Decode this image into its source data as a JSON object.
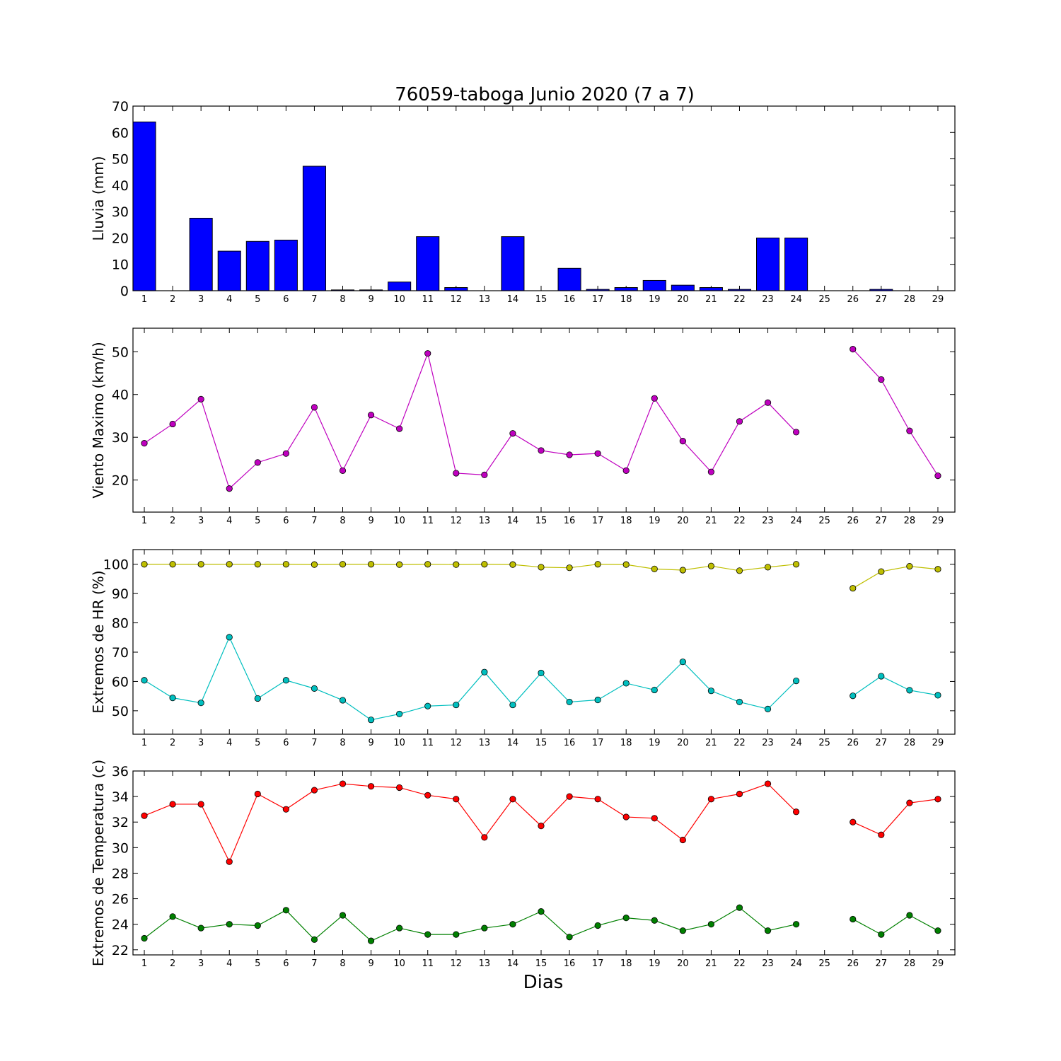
{
  "figure": {
    "title": "76059-taboga Junio 2020  (7 a 7)",
    "xlabel": "Dias"
  },
  "chart_data": [
    {
      "type": "bar",
      "ylabel": "Lluvia (mm)",
      "ylim": [
        0,
        70
      ],
      "yticks": [
        0,
        10,
        20,
        30,
        40,
        50,
        60,
        70
      ],
      "xticks": [
        1,
        2,
        3,
        4,
        5,
        6,
        7,
        8,
        9,
        10,
        11,
        12,
        13,
        14,
        15,
        16,
        17,
        18,
        19,
        20,
        21,
        22,
        23,
        24,
        25,
        26,
        27,
        28,
        29
      ],
      "series": [
        {
          "color": "#0000ff",
          "x": [
            1,
            2,
            3,
            4,
            5,
            6,
            7,
            8,
            9,
            10,
            11,
            12,
            13,
            14,
            15,
            16,
            17,
            18,
            19,
            20,
            21,
            22,
            23,
            24,
            25,
            26,
            27,
            28,
            29
          ],
          "values": [
            64,
            0,
            27.5,
            15,
            18.7,
            19.2,
            47.2,
            0.3,
            0.3,
            3.3,
            20.5,
            1.2,
            0,
            20.5,
            0,
            8.5,
            0.5,
            1.2,
            3.9,
            2.1,
            1.2,
            0.5,
            20,
            20,
            0,
            0,
            0.5,
            0,
            0
          ]
        }
      ],
      "grid": false
    },
    {
      "type": "line",
      "ylabel": "Viento Maximo (km/h)",
      "ylim": [
        12.5,
        55.5
      ],
      "yticks": [
        20,
        30,
        40,
        50
      ],
      "xticks": [
        1,
        2,
        3,
        4,
        5,
        6,
        7,
        8,
        9,
        10,
        11,
        12,
        13,
        14,
        15,
        16,
        17,
        18,
        19,
        20,
        21,
        22,
        23,
        24,
        25,
        26,
        27,
        28,
        29
      ],
      "series": [
        {
          "color": "#bf00bf",
          "x": [
            1,
            2,
            3,
            4,
            5,
            6,
            7,
            8,
            9,
            10,
            11,
            12,
            13,
            14,
            15,
            16,
            17,
            18,
            19,
            20,
            21,
            22,
            23,
            24,
            25,
            26,
            27,
            28,
            29
          ],
          "values": [
            28.6,
            33.1,
            38.9,
            18.0,
            24.1,
            26.2,
            37.0,
            22.2,
            35.2,
            32.0,
            49.6,
            21.6,
            21.2,
            30.9,
            26.9,
            25.9,
            26.2,
            22.2,
            39.1,
            29.1,
            21.9,
            33.7,
            38.1,
            31.2,
            null,
            50.6,
            43.5,
            31.5,
            21.0
          ]
        }
      ],
      "grid": false
    },
    {
      "type": "line",
      "ylabel": "Extremos de HR (%)",
      "ylim": [
        42,
        105
      ],
      "yticks": [
        50,
        60,
        70,
        80,
        90,
        100
      ],
      "xticks": [
        1,
        2,
        3,
        4,
        5,
        6,
        7,
        8,
        9,
        10,
        11,
        12,
        13,
        14,
        15,
        16,
        17,
        18,
        19,
        20,
        21,
        22,
        23,
        24,
        25,
        26,
        27,
        28,
        29
      ],
      "series": [
        {
          "color": "#bfbf00",
          "x": [
            1,
            2,
            3,
            4,
            5,
            6,
            7,
            8,
            9,
            10,
            11,
            12,
            13,
            14,
            15,
            16,
            17,
            18,
            19,
            20,
            21,
            22,
            23,
            24,
            25,
            26,
            27,
            28,
            29
          ],
          "values": [
            100,
            100,
            100,
            100,
            100,
            100,
            99.9,
            100,
            100,
            99.9,
            100,
            99.9,
            100,
            99.9,
            99.0,
            98.8,
            100,
            99.9,
            98.4,
            98.0,
            99.4,
            97.8,
            99.0,
            100,
            null,
            91.8,
            97.5,
            99.3,
            98.3
          ]
        },
        {
          "color": "#00bfbf",
          "x": [
            1,
            2,
            3,
            4,
            5,
            6,
            7,
            8,
            9,
            10,
            11,
            12,
            13,
            14,
            15,
            16,
            17,
            18,
            19,
            20,
            21,
            22,
            23,
            24,
            25,
            26,
            27,
            28,
            29
          ],
          "values": [
            60.4,
            54.4,
            52.7,
            75.1,
            54.2,
            60.4,
            57.6,
            53.6,
            46.9,
            48.9,
            51.6,
            52.0,
            63.2,
            52.0,
            62.9,
            53.0,
            53.7,
            59.4,
            57.1,
            66.7,
            56.8,
            53.0,
            50.6,
            60.2,
            null,
            55.1,
            61.8,
            57.0,
            55.3
          ]
        }
      ],
      "grid": false
    },
    {
      "type": "line",
      "ylabel": "Extremos de Temperatura (c)",
      "ylim": [
        21.6,
        36
      ],
      "yticks": [
        22,
        24,
        26,
        28,
        30,
        32,
        34,
        36
      ],
      "xticks": [
        1,
        2,
        3,
        4,
        5,
        6,
        7,
        8,
        9,
        10,
        11,
        12,
        13,
        14,
        15,
        16,
        17,
        18,
        19,
        20,
        21,
        22,
        23,
        24,
        25,
        26,
        27,
        28,
        29
      ],
      "series": [
        {
          "color": "#ff0000",
          "x": [
            1,
            2,
            3,
            4,
            5,
            6,
            7,
            8,
            9,
            10,
            11,
            12,
            13,
            14,
            15,
            16,
            17,
            18,
            19,
            20,
            21,
            22,
            23,
            24,
            25,
            26,
            27,
            28,
            29
          ],
          "values": [
            32.5,
            33.4,
            33.4,
            28.9,
            34.2,
            33.0,
            34.5,
            35.0,
            34.8,
            34.7,
            34.1,
            33.8,
            30.8,
            33.8,
            31.7,
            34.0,
            33.8,
            32.4,
            32.3,
            30.6,
            33.8,
            34.2,
            35.0,
            32.8,
            null,
            32.0,
            31.0,
            33.5,
            33.8
          ]
        },
        {
          "color": "#008000",
          "x": [
            1,
            2,
            3,
            4,
            5,
            6,
            7,
            8,
            9,
            10,
            11,
            12,
            13,
            14,
            15,
            16,
            17,
            18,
            19,
            20,
            21,
            22,
            23,
            24,
            25,
            26,
            27,
            28,
            29
          ],
          "values": [
            22.9,
            24.6,
            23.7,
            24.0,
            23.9,
            25.1,
            22.8,
            24.7,
            22.7,
            23.7,
            23.2,
            23.2,
            23.7,
            24.0,
            25.0,
            23.0,
            23.9,
            24.5,
            24.3,
            23.5,
            24.0,
            25.3,
            23.5,
            24.0,
            null,
            24.4,
            23.2,
            24.7,
            23.5
          ]
        }
      ],
      "grid": false
    }
  ]
}
